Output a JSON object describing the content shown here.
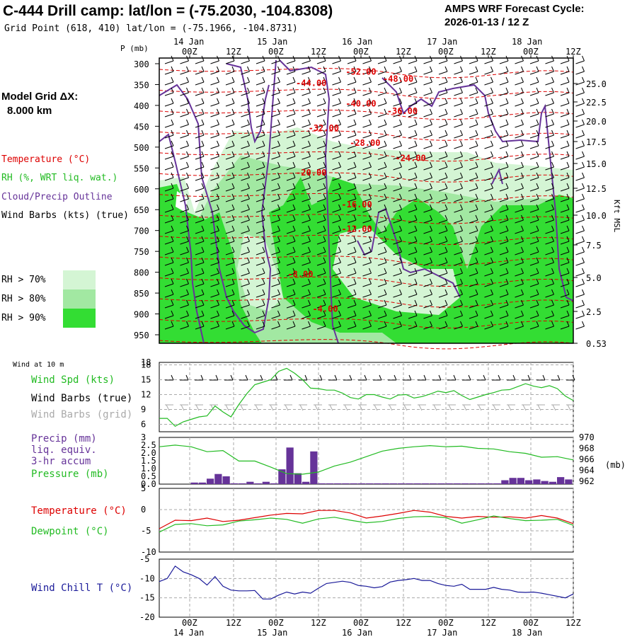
{
  "header": {
    "title": "C-444 Drill camp:  lat/lon = (-75.2030, -104.8308)",
    "grid_point": "Grid Point (618, 410) lat/lon = (-75.1966, -104.8731)",
    "cycle_label": "AMPS WRF Forecast Cycle:",
    "cycle_value": "2026-01-13 / 12  Z",
    "p_label": "P (mb)"
  },
  "model": {
    "grid_label": "Model Grid ΔX:",
    "grid_value": "8.000 km"
  },
  "legend": {
    "temperature": "Temperature (°C)",
    "rh": "RH (%, WRT liq. wat.)",
    "cloud": "Cloud/Precip Outline",
    "wind": "Wind Barbs (kts) (true)",
    "rh70": "RH > 70%",
    "rh80": "RH > 80%",
    "rh90": "RH > 90%",
    "colors": {
      "temp": "#dd0000",
      "rh": "#22bb22",
      "cloud": "#663399",
      "rh70": "#d4f5d4",
      "rh80": "#a2e8a2",
      "rh90": "#33dd33"
    }
  },
  "time_axis": {
    "top_days": [
      "14 Jan",
      "15 Jan",
      "16 Jan",
      "17 Jan",
      "18 Jan"
    ],
    "hours": [
      "00Z",
      "12Z",
      "00Z",
      "12Z",
      "00Z",
      "12Z",
      "00Z",
      "12Z",
      "00Z",
      "12Z"
    ],
    "bottom_days": [
      "14 Jan",
      "15 Jan",
      "16 Jan",
      "17 Jan",
      "18 Jan"
    ]
  },
  "chart_data": [
    {
      "type": "heatmap",
      "name": "cross-section",
      "y_pressure_ticks": [
        300,
        350,
        400,
        450,
        500,
        550,
        600,
        650,
        700,
        750,
        800,
        850,
        900,
        950
      ],
      "y_right_label": "Kft MSL",
      "y_right_ticks": [
        "25.0",
        "22.5",
        "20.0",
        "17.5",
        "15.0",
        "12.5",
        "10.0",
        "7.5",
        "5.0",
        "2.5",
        "0.53"
      ],
      "temperature_labels": [
        {
          "label": "-52.00",
          "t": 0.45,
          "p": 318
        },
        {
          "label": "-48.00",
          "t": 0.54,
          "p": 335
        },
        {
          "label": "-44.00",
          "t": 0.33,
          "p": 345
        },
        {
          "label": "-40.00",
          "t": 0.45,
          "p": 394
        },
        {
          "label": "-36.00",
          "t": 0.55,
          "p": 412
        },
        {
          "label": "-32.00",
          "t": 0.36,
          "p": 453
        },
        {
          "label": "-28.00",
          "t": 0.46,
          "p": 488
        },
        {
          "label": "-24.00",
          "t": 0.57,
          "p": 525
        },
        {
          "label": "-20.00",
          "t": 0.33,
          "p": 560
        },
        {
          "label": "-16.00",
          "t": 0.44,
          "p": 636
        },
        {
          "label": "-12.00",
          "t": 0.44,
          "p": 695
        },
        {
          "label": "-8.00",
          "t": 0.31,
          "p": 803
        },
        {
          "label": "-4.00",
          "t": 0.37,
          "p": 886
        }
      ]
    },
    {
      "type": "line",
      "name": "wind-10m",
      "panel_title": "Wind at 10 m",
      "legend": [
        "Wind Spd (kts)",
        "Wind Barbs (true)",
        "Wind Barbs (grid)"
      ],
      "y_ticks": [
        6,
        9,
        12,
        15,
        18
      ],
      "ylim": [
        4.5,
        18.5
      ],
      "x_hours": [
        0,
        3,
        6,
        9,
        12,
        15,
        18,
        21,
        24,
        27,
        30,
        33,
        36,
        39,
        42,
        45,
        48,
        51,
        54,
        57,
        60,
        63,
        66,
        69,
        72,
        75,
        78,
        81,
        84,
        87,
        90,
        93,
        96,
        99,
        102,
        105,
        108,
        111,
        114,
        117,
        120,
        123,
        126,
        129,
        132,
        135,
        138,
        141,
        144,
        147,
        150,
        153,
        156
      ],
      "values": [
        7.2,
        7.2,
        5.6,
        6.5,
        7.0,
        7.5,
        7.7,
        9.7,
        8.5,
        7.5,
        10.0,
        12.2,
        14.0,
        14.5,
        15.0,
        16.7,
        17.3,
        16.3,
        15.0,
        13.3,
        13.2,
        12.9,
        12.9,
        12.3,
        11.4,
        11.1,
        12.0,
        12.0,
        11.5,
        11.1,
        11.9,
        12.0,
        11.3,
        11.6,
        12.1,
        12.7,
        12.4,
        12.8,
        11.8,
        11.0,
        11.5,
        12.0,
        12.4,
        12.9,
        13.0,
        13.6,
        14.2,
        13.7,
        13.4,
        13.8,
        13.2,
        11.7,
        10.8
      ]
    },
    {
      "type": "bar",
      "name": "precip-pressure",
      "legend": [
        "Precip (mm)",
        "liq. equiv.",
        "3-hr accum",
        "Pressure (mb)"
      ],
      "y_left_ticks": [
        "0.0",
        "0.5",
        "1.0",
        "1.5",
        "2.0",
        "2.5",
        "3"
      ],
      "y_right_ticks": [
        962,
        964,
        966,
        968,
        970
      ],
      "y_right_unit": "(mb)",
      "precip_x_hours": [
        12,
        15,
        18,
        21,
        24,
        27,
        30,
        33,
        36,
        39,
        42,
        45,
        48,
        51,
        54,
        57,
        60,
        63,
        66,
        69,
        72,
        75,
        78,
        81,
        84,
        87,
        90,
        93,
        96,
        99,
        102,
        105,
        108,
        111,
        114,
        117,
        120,
        123,
        126,
        129,
        132,
        135,
        138,
        141,
        144,
        147,
        150,
        153
      ],
      "precip_values": [
        0.1,
        0.1,
        0.35,
        0.65,
        0.5,
        0.05,
        0.05,
        0.15,
        0.05,
        0.15,
        0.05,
        0.95,
        2.35,
        0.7,
        0.15,
        2.1,
        0.05,
        0.05,
        0.05,
        0.05,
        0.05,
        0.05,
        0.05,
        0.05,
        0.05,
        0.05,
        0.05,
        0.05,
        0.05,
        0.05,
        0.05,
        0.05,
        0.05,
        0.05,
        0.05,
        0.05,
        0.05,
        0.05,
        0.05,
        0.25,
        0.4,
        0.4,
        0.25,
        0.3,
        0.2,
        0.15,
        0.45,
        0.3
      ],
      "pressure_x_hours": [
        0,
        6,
        12,
        18,
        24,
        30,
        36,
        42,
        48,
        54,
        60,
        66,
        72,
        78,
        84,
        90,
        96,
        102,
        108,
        114,
        120,
        126,
        132,
        138,
        144,
        150,
        156
      ],
      "pressure_values": [
        968.3,
        968.6,
        968.3,
        967.4,
        967.6,
        965.7,
        965.7,
        964.6,
        963.4,
        963.3,
        963.7,
        964.8,
        965.5,
        966.5,
        967.5,
        968.0,
        968.3,
        968.5,
        968.3,
        968.4,
        968.0,
        967.9,
        967.4,
        967.1,
        966.4,
        966.5,
        965.9
      ]
    },
    {
      "type": "line",
      "name": "temperature-dewpoint",
      "legend": [
        "Temperature (°C)",
        "Dewpoint (°C)"
      ],
      "y_ticks": [
        5,
        0,
        -5,
        -10
      ],
      "ylim": [
        -10,
        5
      ],
      "x_hours": [
        0,
        6,
        12,
        18,
        24,
        30,
        36,
        42,
        48,
        54,
        60,
        66,
        72,
        78,
        84,
        90,
        96,
        102,
        108,
        114,
        120,
        126,
        132,
        138,
        144,
        150,
        156
      ],
      "temperature": [
        -4.5,
        -2.5,
        -2.6,
        -2.0,
        -2.8,
        -2.5,
        -1.9,
        -1.3,
        -0.9,
        -1.0,
        -0.2,
        -0.2,
        -0.8,
        -2.0,
        -1.5,
        -0.9,
        -0.2,
        -0.6,
        -1.6,
        -2.0,
        -1.6,
        -1.8,
        -1.7,
        -2.0,
        -1.4,
        -2.0,
        -3.3
      ],
      "dewpoint": [
        -5.3,
        -3.5,
        -3.3,
        -3.8,
        -3.6,
        -2.7,
        -2.4,
        -2.0,
        -2.3,
        -3.2,
        -2.2,
        -1.8,
        -2.5,
        -3.1,
        -2.8,
        -2.1,
        -1.7,
        -1.6,
        -1.9,
        -3.2,
        -2.4,
        -1.5,
        -2.1,
        -2.6,
        -2.5,
        -2.3,
        -3.7
      ]
    },
    {
      "type": "line",
      "name": "wind-chill",
      "legend": [
        "Wind Chill T (°C)"
      ],
      "y_ticks": [
        -5,
        -10,
        -15,
        -20
      ],
      "ylim": [
        -20,
        -5
      ],
      "x_hours": [
        0,
        3,
        6,
        9,
        12,
        15,
        18,
        21,
        24,
        27,
        30,
        33,
        36,
        39,
        42,
        45,
        48,
        51,
        54,
        57,
        60,
        63,
        66,
        69,
        72,
        75,
        78,
        81,
        84,
        87,
        90,
        93,
        96,
        99,
        102,
        105,
        108,
        111,
        114,
        117,
        120,
        123,
        126,
        129,
        132,
        135,
        138,
        141,
        144,
        147,
        150,
        153,
        156
      ],
      "values": [
        -10.8,
        -10.0,
        -6.8,
        -8.3,
        -9.0,
        -10.0,
        -11.7,
        -9.5,
        -12.0,
        -13.0,
        -13.2,
        -13.2,
        -13.1,
        -15.3,
        -15.3,
        -14.3,
        -13.5,
        -14.0,
        -13.5,
        -13.8,
        -12.5,
        -11.3,
        -11.0,
        -10.7,
        -11.0,
        -11.8,
        -12.0,
        -12.4,
        -12.1,
        -10.9,
        -10.5,
        -10.3,
        -10.0,
        -10.5,
        -10.5,
        -11.3,
        -11.8,
        -12.0,
        -11.5,
        -12.8,
        -12.8,
        -12.8,
        -12.3,
        -12.8,
        -13.0,
        -13.5,
        -13.6,
        -13.5,
        -13.8,
        -14.2,
        -14.6,
        -15.0,
        -14.0
      ]
    }
  ]
}
